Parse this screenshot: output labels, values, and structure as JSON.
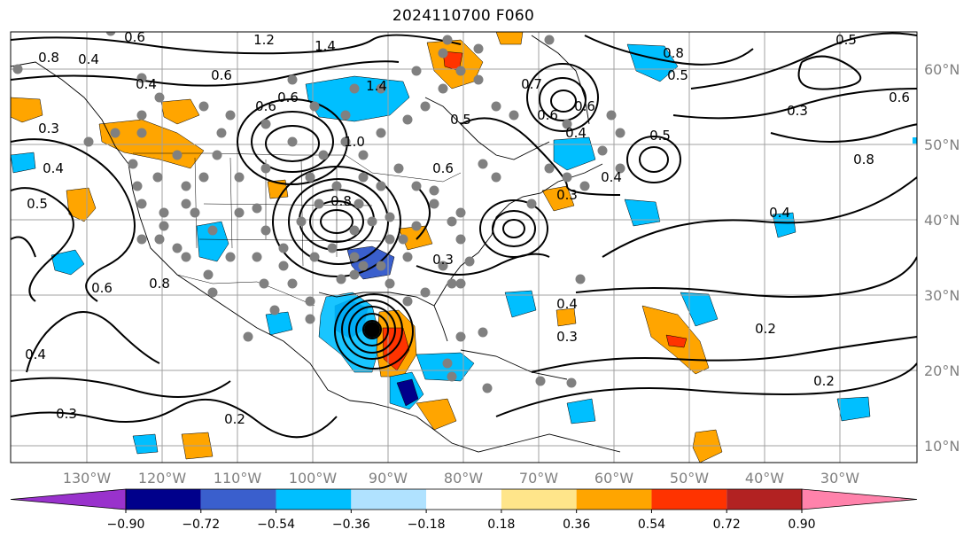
{
  "title": "2024110700 F060",
  "lat_labels": [
    "60°N",
    "50°N",
    "40°N",
    "30°N",
    "20°N",
    "10°N"
  ],
  "lon_labels": [
    "130°W",
    "120°W",
    "110°W",
    "100°W",
    "90°W",
    "80°W",
    "70°W",
    "60°W",
    "50°W",
    "40°W",
    "30°W"
  ],
  "colorbar": {
    "ticks": [
      "−0.90",
      "−0.72",
      "−0.54",
      "−0.36",
      "−0.18",
      "0.18",
      "0.36",
      "0.54",
      "0.72",
      "0.90"
    ],
    "colors": [
      "#9932cc",
      "#00008b",
      "#3a5fcd",
      "#00bfff",
      "#b0e2ff",
      "#ffffff",
      "#ffe58a",
      "#ffa500",
      "#ff3300",
      "#b22222",
      "#ff82ab"
    ]
  },
  "contour_labels": [
    "0.6",
    "1.2",
    "1.4",
    "0.6",
    "0.8",
    "0.4",
    "0.3",
    "0.4",
    "0.5",
    "0.6",
    "0.4",
    "0.6",
    "1.4",
    "1.0",
    "0.8",
    "0.6",
    "0.6",
    "0.3",
    "0.4",
    "0.5",
    "0.4",
    "0.3",
    "0.4",
    "0.6",
    "0.8",
    "0.7",
    "0.5",
    "0.3",
    "0.6",
    "0.8",
    "0.4",
    "0.3",
    "0.2",
    "0.4",
    "0.3",
    "0.2",
    "0.2",
    "0.8",
    "0.5",
    "0.5"
  ]
}
